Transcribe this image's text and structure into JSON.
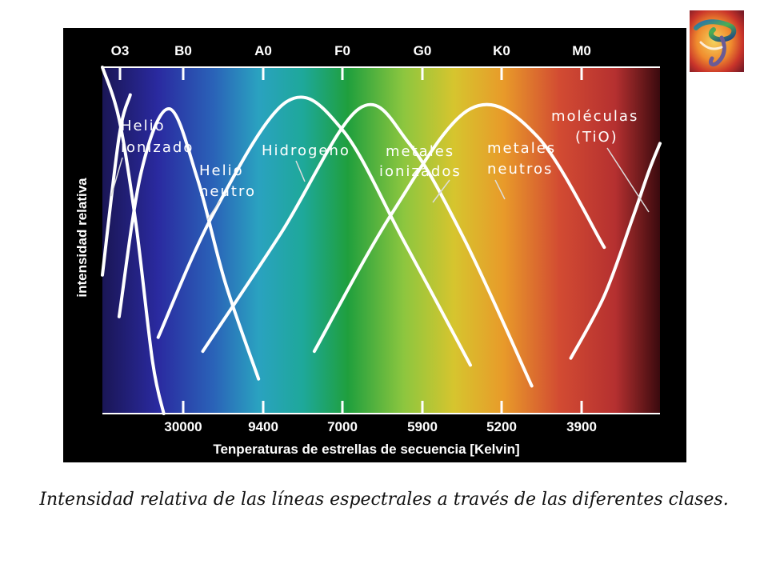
{
  "logo": {
    "icon": "abstract-colorful-logo-icon"
  },
  "caption": "Intensidad relativa de las líneas espectrales a través de las diferentes clases.",
  "chart_data": {
    "type": "line",
    "title": "",
    "xlabel": "Tenperaturas de estrellas de secuencia [Kelvin]",
    "ylabel": "intensidad relativa",
    "grid": false,
    "background": "spectral gradient blue-to-red",
    "spectral_classes": [
      "O3",
      "B0",
      "A0",
      "F0",
      "G0",
      "K0",
      "M0"
    ],
    "temperature_ticks": [
      "30000",
      "9400",
      "7000",
      "5900",
      "5200",
      "3900"
    ],
    "x_range": [
      0,
      100
    ],
    "y_range": [
      0,
      100
    ],
    "series": [
      {
        "name": "Helio ionizado",
        "x": [
          0,
          3,
          6,
          9,
          11
        ],
        "y": [
          100,
          85,
          55,
          15,
          0
        ]
      },
      {
        "name": "Helio ionizado",
        "x": [
          0,
          3,
          5
        ],
        "y": [
          40,
          80,
          92
        ]
      },
      {
        "name": "Helio neutro",
        "x": [
          3,
          7,
          12,
          17,
          22,
          28
        ],
        "y": [
          28,
          70,
          88,
          68,
          38,
          10
        ]
      },
      {
        "name": "Hidrogeno",
        "x": [
          10,
          20,
          33,
          43,
          54,
          66
        ],
        "y": [
          22,
          58,
          90,
          82,
          50,
          14
        ]
      },
      {
        "name": "metales ionizados",
        "x": [
          18,
          32,
          46,
          55,
          65,
          77
        ],
        "y": [
          18,
          52,
          88,
          78,
          50,
          8
        ]
      },
      {
        "name": "metales neutros",
        "x": [
          38,
          52,
          66,
          78,
          90
        ],
        "y": [
          18,
          58,
          88,
          80,
          48
        ]
      },
      {
        "name": "moléculas (TiO)",
        "x": [
          84,
          90,
          95,
          98,
          100
        ],
        "y": [
          16,
          34,
          56,
          70,
          78
        ]
      }
    ],
    "annotations": [
      {
        "text": "Helio",
        "series": "Helio ionizado"
      },
      {
        "text": "ionizado",
        "series": "Helio ionizado"
      },
      {
        "text": "Helio",
        "series": "Helio neutro"
      },
      {
        "text": "neutro",
        "series": "Helio neutro"
      },
      {
        "text": "Hidrogeno",
        "series": "Hidrogeno"
      },
      {
        "text": "metales",
        "series": "metales ionizados"
      },
      {
        "text": "ionizados",
        "series": "metales ionizados"
      },
      {
        "text": "metales",
        "series": "metales neutros"
      },
      {
        "text": "neutros",
        "series": "metales neutros"
      },
      {
        "text": "moléculas",
        "series": "moléculas (TiO)"
      },
      {
        "text": "(TiO)",
        "series": "moléculas (TiO)"
      }
    ],
    "colors": {
      "curve": "#ffffff",
      "text": "#ffffff",
      "panel": "#000000"
    }
  }
}
